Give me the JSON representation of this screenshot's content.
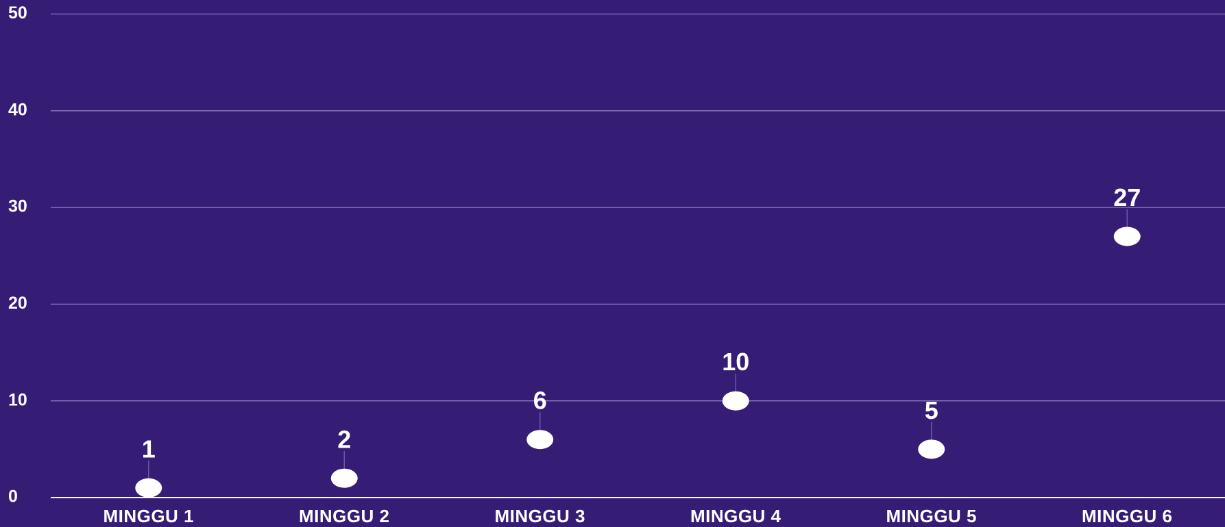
{
  "chart_data": {
    "type": "dot",
    "categories": [
      "MINGGU 1",
      "MINGGU 2",
      "MINGGU 3",
      "MINGGU 4",
      "MINGGU 5",
      "MINGGU 6"
    ],
    "values": [
      1,
      2,
      6,
      10,
      5,
      27
    ],
    "color": "#ffffff",
    "background": "#351d75",
    "ylim": [
      0,
      50
    ],
    "yticks": [
      0,
      10,
      20,
      30,
      40,
      50
    ],
    "grid": true
  }
}
